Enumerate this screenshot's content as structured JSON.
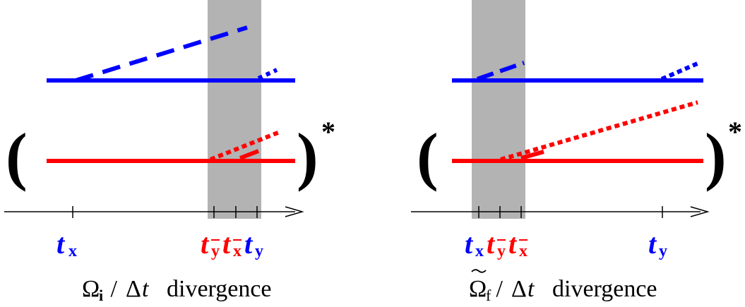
{
  "colors": {
    "blue": "#0000ff",
    "red": "#ff0000",
    "shade": "#b3b3b3",
    "axis": "#000000"
  },
  "panels": [
    {
      "id": "left",
      "paren_open": "(",
      "paren_close": ")",
      "star": "*",
      "ticks": [
        {
          "base": "t",
          "sub": "x",
          "bar": false,
          "color": "blue"
        },
        {
          "base": "t",
          "sub": "y",
          "bar": true,
          "color": "red"
        },
        {
          "base": "t",
          "sub": "x",
          "bar": true,
          "color": "red"
        },
        {
          "base": "t",
          "sub": "y",
          "bar": false,
          "color": "blue"
        }
      ],
      "caption": {
        "symbol": "Ω",
        "sub": "i",
        "tilde": false,
        "op": " / ",
        "delta": "Δ",
        "t": "t",
        "word": "divergence"
      }
    },
    {
      "id": "right",
      "paren_open": "(",
      "paren_close": ")",
      "star": "*",
      "ticks": [
        {
          "base": "t",
          "sub": "x",
          "bar": false,
          "color": "blue"
        },
        {
          "base": "t",
          "sub": "y",
          "bar": true,
          "color": "red"
        },
        {
          "base": "t",
          "sub": "x",
          "bar": true,
          "color": "red"
        },
        {
          "base": "t",
          "sub": "y",
          "bar": false,
          "color": "blue"
        }
      ],
      "caption": {
        "symbol": "Ω",
        "sub": "f",
        "tilde": true,
        "op": " / ",
        "delta": "Δ",
        "t": "t",
        "word": "divergence"
      }
    }
  ]
}
